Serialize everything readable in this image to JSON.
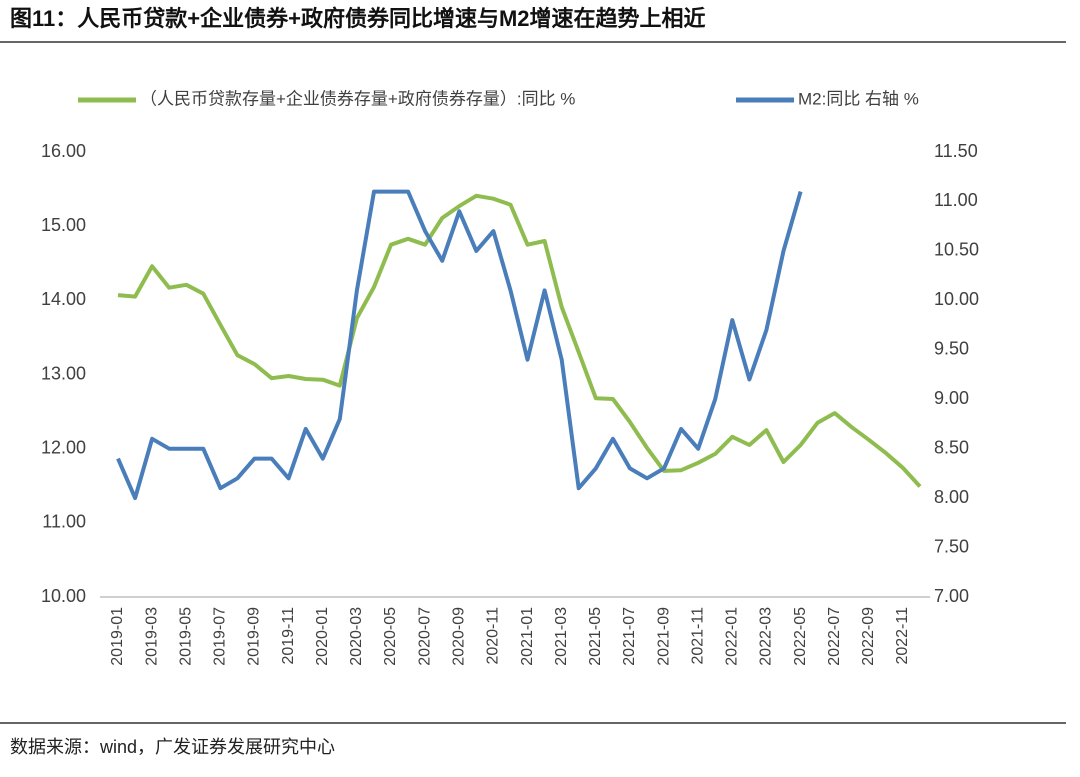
{
  "chart_data": {
    "type": "line",
    "title": "图11：人民币贷款+企业债券+政府债券同比增速与M2增速在趋势上相近",
    "source": "数据来源：wind，广发证券发展研究中心",
    "categories": [
      "2019-01",
      null,
      "2019-03",
      null,
      "2019-05",
      null,
      "2019-07",
      null,
      "2019-09",
      null,
      "2019-11",
      null,
      "2020-01",
      null,
      "2020-03",
      null,
      "2020-05",
      null,
      "2020-07",
      null,
      "2020-09",
      null,
      "2020-11",
      null,
      "2021-01",
      null,
      "2021-03",
      null,
      "2021-05",
      null,
      "2021-07",
      null,
      "2021-09",
      null,
      "2021-11",
      null,
      "2022-01",
      null,
      "2022-03",
      null,
      "2022-05",
      null,
      "2022-07",
      null,
      "2022-09",
      null,
      "2022-11",
      null
    ],
    "series": [
      {
        "name": "（人民币贷款存量+企业债券存量+政府债券存量）:同比 %",
        "color": "#8fbc4f",
        "axis": "y",
        "values": [
          14.07,
          14.05,
          14.46,
          14.17,
          14.21,
          14.09,
          13.67,
          13.26,
          13.14,
          12.95,
          12.98,
          12.94,
          12.93,
          12.85,
          13.76,
          14.18,
          14.75,
          14.83,
          14.75,
          15.11,
          15.27,
          15.41,
          15.37,
          15.29,
          14.75,
          14.8,
          13.91,
          13.3,
          12.68,
          12.67,
          12.36,
          12.01,
          11.7,
          11.71,
          11.81,
          11.93,
          12.16,
          12.05,
          12.25,
          11.82,
          12.05,
          12.35,
          12.48,
          12.29,
          12.12,
          11.94,
          11.74,
          11.49
        ]
      },
      {
        "name": "M2:同比  右轴 %",
        "color": "#4a7ebb",
        "axis": "y2",
        "values": [
          8.4,
          8.0,
          8.6,
          8.5,
          8.5,
          8.5,
          8.1,
          8.2,
          8.4,
          8.4,
          8.2,
          8.7,
          8.4,
          8.8,
          10.1,
          11.1,
          11.1,
          11.1,
          10.7,
          10.4,
          10.9,
          10.5,
          10.7,
          10.1,
          9.4,
          10.1,
          9.4,
          8.1,
          8.3,
          8.6,
          8.3,
          8.2,
          8.3,
          8.7,
          8.5,
          9.0,
          9.8,
          9.2,
          9.7,
          10.5,
          11.1,
          null,
          null,
          null,
          null,
          null,
          null,
          null
        ]
      }
    ],
    "ylim": [
      10,
      16
    ],
    "yticks": [
      {
        "value": 10,
        "label": "10.00"
      },
      {
        "value": 11,
        "label": "11.00"
      },
      {
        "value": 12,
        "label": "12.00"
      },
      {
        "value": 13,
        "label": "13.00"
      },
      {
        "value": 14,
        "label": "14.00"
      },
      {
        "value": 15,
        "label": "15.00"
      },
      {
        "value": 16,
        "label": "16.00"
      }
    ],
    "y2lim": [
      7,
      11.5
    ],
    "y2ticks": [
      {
        "value": 7,
        "label": "7.00"
      },
      {
        "value": 7.5,
        "label": "7.50"
      },
      {
        "value": 8,
        "label": "8.00"
      },
      {
        "value": 8.5,
        "label": "8.50"
      },
      {
        "value": 9,
        "label": "9.00"
      },
      {
        "value": 9.5,
        "label": "9.50"
      },
      {
        "value": 10,
        "label": "10.00"
      },
      {
        "value": 10.5,
        "label": "10.50"
      },
      {
        "value": 11,
        "label": "11.00"
      },
      {
        "value": 11.5,
        "label": "11.50"
      }
    ],
    "grid": false,
    "legend": "top"
  }
}
